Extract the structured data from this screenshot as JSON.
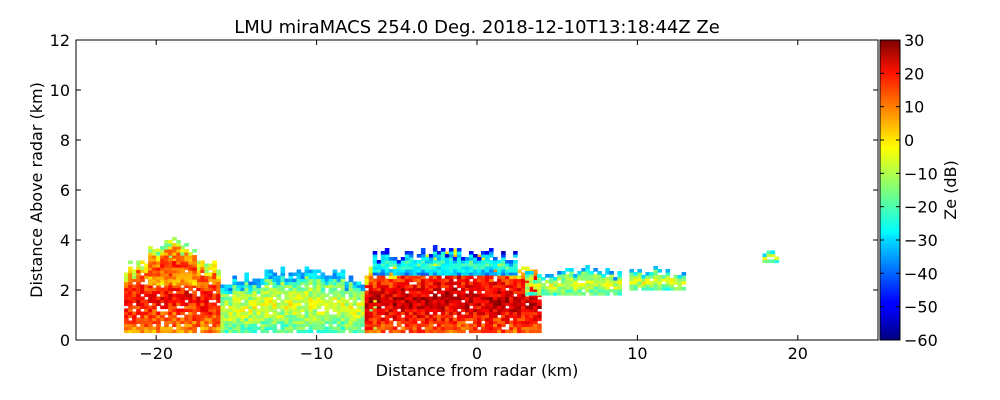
{
  "chart_data": {
    "type": "heatmap",
    "title": "LMU miraMACS 254.0 Deg. 2018-12-10T13:18:44Z  Ze",
    "xlabel": "Distance from radar (km)",
    "ylabel": "Distance Above radar  (km)",
    "xlim": [
      -25,
      25
    ],
    "ylim": [
      0,
      12
    ],
    "x_ticks": [
      -20,
      -10,
      0,
      10,
      20
    ],
    "x_tick_labels": [
      "−20",
      "−10",
      "0",
      "10",
      "20"
    ],
    "y_ticks": [
      0,
      2,
      4,
      6,
      8,
      10,
      12
    ],
    "y_tick_labels": [
      "0",
      "2",
      "4",
      "6",
      "8",
      "10",
      "12"
    ],
    "colorbar": {
      "label": "Ze (dB)",
      "range": [
        -60,
        30
      ],
      "ticks": [
        30,
        20,
        10,
        0,
        -10,
        -20,
        -30,
        -40,
        -50,
        -60
      ],
      "tick_labels": [
        "30",
        "20",
        "10",
        "0",
        "−10",
        "−20",
        "−30",
        "−40",
        "−50",
        "−60"
      ],
      "colormap": "jet"
    },
    "grid": false,
    "echo_regions": [
      {
        "name": "far-left-low",
        "x_range": [
          -22,
          -16
        ],
        "z_range": [
          0.3,
          3.6
        ],
        "Ze_dB_approx": 10
      },
      {
        "name": "left-upper-cells",
        "x_range": [
          -20.5,
          -17.5
        ],
        "z_range": [
          2.2,
          3.8
        ],
        "Ze_dB_approx": 5
      },
      {
        "name": "middle-layer",
        "x_range": [
          -16,
          -6
        ],
        "z_range": [
          0.3,
          2.8
        ],
        "Ze_dB_approx": -15
      },
      {
        "name": "central-core",
        "x_range": [
          -7,
          4
        ],
        "z_range": [
          0.3,
          3.4
        ],
        "Ze_dB_approx": 15
      },
      {
        "name": "central-top-edge",
        "x_range": [
          -6.5,
          2.5
        ],
        "z_range": [
          2.6,
          3.5
        ],
        "Ze_dB_approx": -30
      },
      {
        "name": "right-layer",
        "x_range": [
          3,
          9
        ],
        "z_range": [
          1.8,
          2.8
        ],
        "Ze_dB_approx": -15
      },
      {
        "name": "right-patches",
        "x_range": [
          9.5,
          13
        ],
        "z_range": [
          2.0,
          2.8
        ],
        "Ze_dB_approx": -15
      },
      {
        "name": "far-right-patch",
        "x_range": [
          17.8,
          18.6
        ],
        "z_range": [
          3.1,
          3.4
        ],
        "Ze_dB_approx": -15
      }
    ]
  }
}
